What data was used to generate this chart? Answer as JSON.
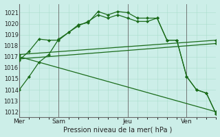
{
  "background_color": "#cceee8",
  "grid_color": "#aaddcc",
  "line_color": "#1a6b1a",
  "sep_color": "#666666",
  "xlabel": "Pression niveau de la mer( hPa )",
  "ylim": [
    1011.5,
    1021.8
  ],
  "yticks": [
    1012,
    1013,
    1014,
    1015,
    1016,
    1017,
    1018,
    1019,
    1020,
    1021
  ],
  "day_labels": [
    "Mer",
    "Sam",
    "Jeu",
    "Ven"
  ],
  "day_positions": [
    0,
    4,
    11,
    17
  ],
  "xlim": [
    0,
    20
  ],
  "line1_x": [
    0,
    1,
    2,
    3,
    4,
    5,
    6,
    7,
    8,
    9,
    10,
    11,
    12,
    13,
    14,
    15,
    16,
    17,
    18,
    19,
    20
  ],
  "line1_y": [
    1014.0,
    1015.2,
    1016.5,
    1017.2,
    1018.6,
    1019.2,
    1019.9,
    1020.1,
    1021.1,
    1020.8,
    1021.1,
    1021.0,
    1020.5,
    1020.5,
    1020.5,
    1018.5,
    1018.5,
    1015.2,
    1014.0,
    1013.7,
    1011.8
  ],
  "line2_x": [
    0,
    1,
    2,
    3,
    4,
    5,
    6,
    7,
    8,
    9,
    10,
    11,
    12,
    13,
    14,
    15,
    16,
    17,
    18,
    19,
    20
  ],
  "line2_y": [
    1016.7,
    1017.5,
    1018.6,
    1018.5,
    1018.5,
    1019.2,
    1019.8,
    1020.2,
    1020.8,
    1020.5,
    1020.8,
    1020.5,
    1020.2,
    1020.2,
    1020.5,
    1018.5,
    1018.5,
    1015.2,
    1014.0,
    1013.7,
    1011.8
  ],
  "line3_x": [
    0,
    20
  ],
  "line3_y": [
    1017.2,
    1018.5
  ],
  "line4_x": [
    0,
    20
  ],
  "line4_y": [
    1016.8,
    1018.2
  ],
  "line5_x": [
    0,
    20
  ],
  "line5_y": [
    1017.0,
    1012.0
  ]
}
